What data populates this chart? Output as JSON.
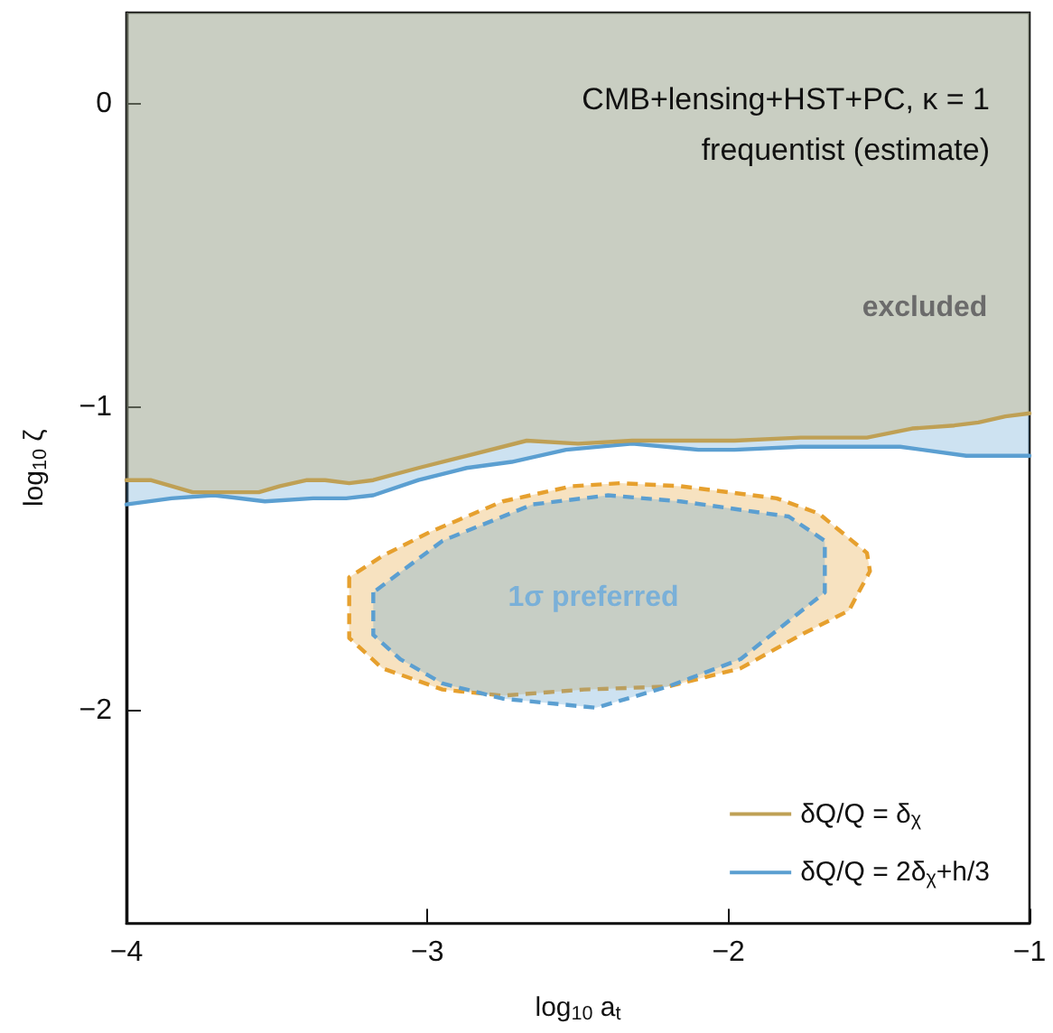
{
  "chart_data": {
    "type": "line",
    "xlabel": "log$_{10}$ a$_{t}$",
    "ylabel": "log$_{10}$ ζ",
    "xlim": [
      -4,
      -1
    ],
    "ylim": [
      -2.7,
      0.3
    ],
    "xticks": [
      -4,
      -3,
      -2,
      -1
    ],
    "yticks": [
      -2,
      -1,
      0
    ],
    "grid": false,
    "legend": "bottom right",
    "marker": "none",
    "annotations": [
      "CMB+lensing+HST+PC, κ = 1",
      "frequentist (estimate)",
      "excluded",
      "1σ preferred"
    ],
    "series": [
      {
        "name": "δQ/Q = δ$_{χ}$",
        "color": "#bfa055",
        "line_style": "solid",
        "x": [
          -4,
          -3.92,
          -3.78,
          -3.56,
          -3.49,
          -3.4,
          -3.34,
          -3.26,
          -3.18,
          -3.03,
          -2.87,
          -2.67,
          -2.5,
          -2.32,
          -1.98,
          -1.76,
          -1.54,
          -1.39,
          -1.25,
          -1.17,
          -1.08,
          -1
        ],
        "values": [
          -1.24,
          -1.24,
          -1.28,
          -1.28,
          -1.26,
          -1.24,
          -1.24,
          -1.25,
          -1.24,
          -1.2,
          -1.16,
          -1.11,
          -1.12,
          -1.11,
          -1.11,
          -1.1,
          -1.1,
          -1.07,
          -1.06,
          -1.05,
          -1.03,
          -1.02
        ],
        "lower": [
          -1.24,
          -1.24,
          -1.28,
          -1.28,
          -1.26,
          -1.24,
          -1.24,
          -1.25,
          -1.24,
          -1.2,
          -1.16,
          -1.11,
          -1.12,
          -1.11,
          -1.11,
          -1.1,
          -1.1,
          -1.07,
          -1.06,
          -1.05,
          -1.03,
          -1.02
        ],
        "upper": [
          0.3,
          0.3,
          0.3,
          0.3,
          0.3,
          0.3,
          0.3,
          0.3,
          0.3,
          0.3,
          0.3,
          0.3,
          0.3,
          0.3,
          0.3,
          0.3,
          0.3,
          0.3,
          0.3,
          0.3,
          0.3,
          0.3
        ]
      },
      {
        "name": "δQ/Q = 2δ$_{χ}$+h/3",
        "color": "#5b9fd1",
        "line_style": "solid",
        "x": [
          -4,
          -3.85,
          -3.71,
          -3.54,
          -3.38,
          -3.27,
          -3.18,
          -3.03,
          -2.87,
          -2.72,
          -2.54,
          -2.32,
          -2.1,
          -1.98,
          -1.76,
          -1.54,
          -1.43,
          -1.21,
          -1
        ],
        "values": [
          -1.32,
          -1.3,
          -1.29,
          -1.31,
          -1.3,
          -1.3,
          -1.29,
          -1.24,
          -1.2,
          -1.18,
          -1.14,
          -1.12,
          -1.14,
          -1.14,
          -1.13,
          -1.13,
          -1.13,
          -1.16,
          -1.16
        ],
        "lower": [
          -1.32,
          -1.3,
          -1.29,
          -1.31,
          -1.3,
          -1.3,
          -1.29,
          -1.24,
          -1.2,
          -1.18,
          -1.14,
          -1.12,
          -1.14,
          -1.14,
          -1.13,
          -1.13,
          -1.13,
          -1.16,
          -1.16
        ],
        "upper": [
          0.3,
          0.3,
          0.3,
          0.3,
          0.3,
          0.3,
          0.3,
          0.3,
          0.3,
          0.3,
          0.3,
          0.3,
          0.3,
          0.3,
          0.3,
          0.3,
          0.3,
          0.3,
          0.3
        ]
      },
      {
        "type": "area",
        "color": "#e6a02e",
        "line_style": "dashed",
        "x": [
          -3.26,
          -3.26,
          -3.15,
          -2.95,
          -2.75,
          -2.48,
          -2.2,
          -1.96,
          -1.76,
          -1.6,
          -1.53,
          -1.54,
          -1.7,
          -1.84,
          -2.16,
          -2.36,
          -2.52,
          -2.75,
          -2.99,
          -3.15,
          -3.26
        ],
        "values": [
          -1.56,
          -1.76,
          -1.86,
          -1.93,
          -1.95,
          -1.93,
          -1.92,
          -1.86,
          -1.75,
          -1.67,
          -1.54,
          -1.48,
          -1.35,
          -1.3,
          -1.26,
          -1.25,
          -1.26,
          -1.31,
          -1.41,
          -1.49,
          -1.56
        ]
      },
      {
        "type": "area",
        "color": "#5b9fd1",
        "line_style": "dashed",
        "x": [
          -3.18,
          -3.18,
          -3.09,
          -2.95,
          -2.75,
          -2.44,
          -2.2,
          -1.96,
          -1.68,
          -1.68,
          -1.8,
          -2.16,
          -2.4,
          -2.65,
          -2.95,
          -3.18
        ],
        "values": [
          -1.61,
          -1.75,
          -1.83,
          -1.91,
          -1.96,
          -1.99,
          -1.92,
          -1.83,
          -1.61,
          -1.44,
          -1.36,
          -1.31,
          -1.29,
          -1.32,
          -1.44,
          -1.61
        ]
      }
    ]
  }
}
